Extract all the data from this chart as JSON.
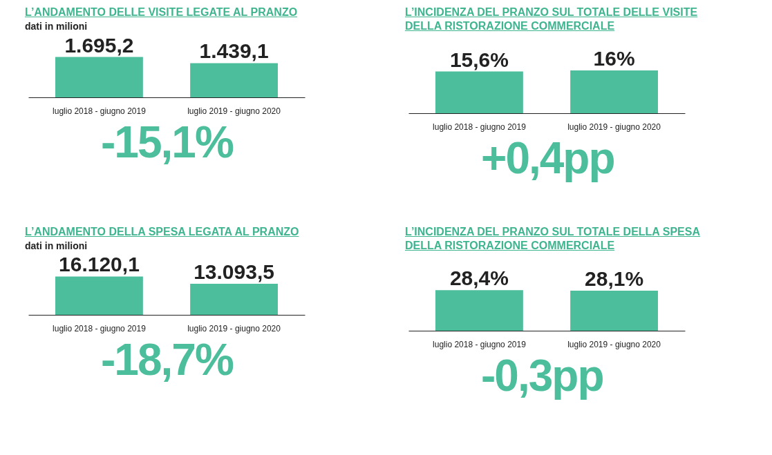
{
  "chart_data": [
    {
      "type": "bar",
      "title": "L’ANDAMENTO DELLE VISITE LEGATE AL PRANZO",
      "subtitle": "dati in milioni",
      "categories": [
        "luglio 2018 - giugno 2019",
        "luglio 2019 - giugno 2020"
      ],
      "values": [
        1695.2,
        1439.1
      ],
      "value_labels": [
        "1.695,2",
        "1.439,1"
      ],
      "color": "#4cbe9c",
      "annotations": [
        "-15,1%"
      ]
    },
    {
      "type": "bar",
      "title": "L’INCIDENZA DEL PRANZO SUL TOTALE DELLE VISITE DELLA RISTORAZIONE COMMERCIALE",
      "categories": [
        "luglio 2018 - giugno 2019",
        "luglio 2019 - giugno 2020"
      ],
      "values": [
        15.6,
        16
      ],
      "value_labels": [
        "15,6%",
        "16%"
      ],
      "color": "#4cbe9c",
      "annotations": [
        "+0,4pp"
      ]
    },
    {
      "type": "bar",
      "title": "L’ANDAMENTO DELLA SPESA LEGATA AL PRANZO",
      "subtitle": "dati in milioni",
      "categories": [
        "luglio 2018 - giugno 2019",
        "luglio 2019 - giugno 2020"
      ],
      "values": [
        16120.1,
        13093.5
      ],
      "value_labels": [
        "16.120,1",
        "13.093,5"
      ],
      "color": "#4cbe9c",
      "annotations": [
        "-18,7%"
      ]
    },
    {
      "type": "bar",
      "title": "L’INCIDENZA DEL PRANZO SUL TOTALE DELLA SPESA DELLA RISTORAZIONE COMMERCIALE",
      "categories": [
        "luglio 2018 - giugno 2019",
        "luglio 2019 - giugno 2020"
      ],
      "values": [
        28.4,
        28.1
      ],
      "value_labels": [
        "28,4%",
        "28,1%"
      ],
      "color": "#4cbe9c",
      "annotations": [
        "-0,3pp"
      ]
    }
  ]
}
